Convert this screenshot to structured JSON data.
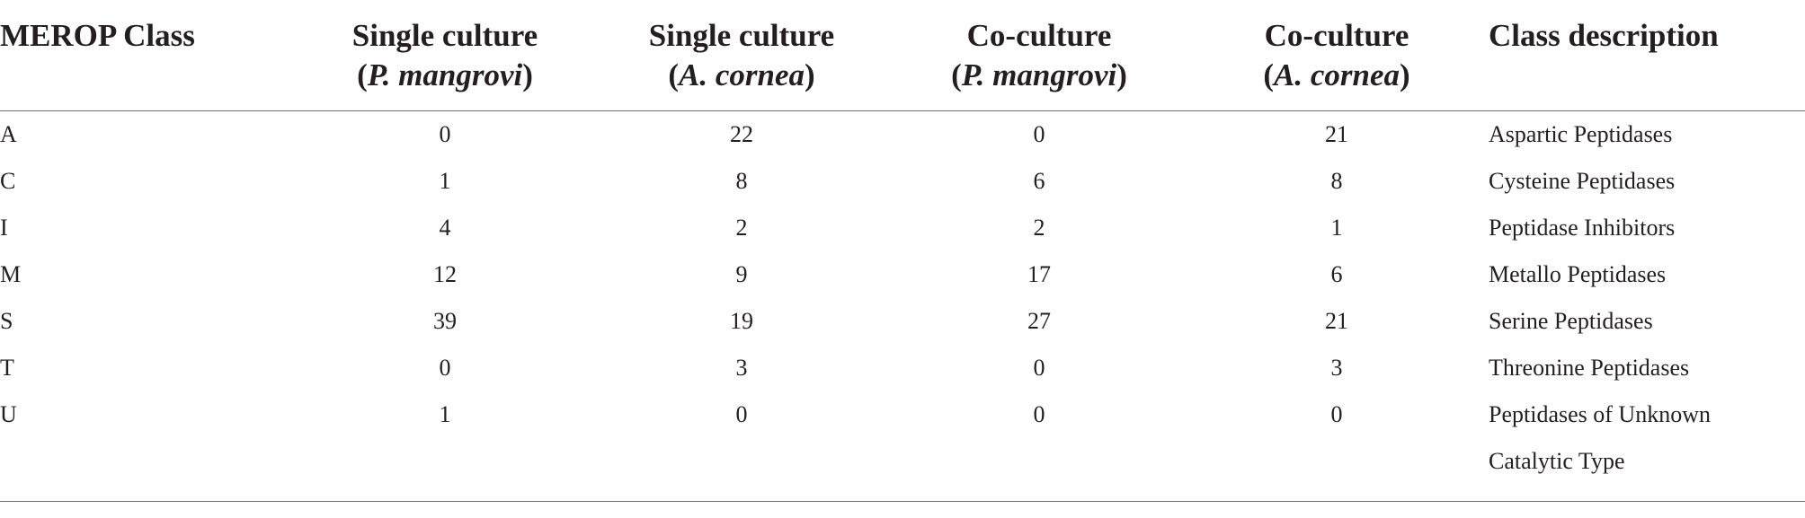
{
  "table": {
    "headers": [
      {
        "line1": "MEROP Class",
        "line2_open": "",
        "line2_italic": "",
        "line2_close": ""
      },
      {
        "line1": "Single culture",
        "line2_open": "(",
        "line2_italic": "P. mangrovi",
        "line2_close": ")"
      },
      {
        "line1": "Single culture",
        "line2_open": "(",
        "line2_italic": "A. cornea",
        "line2_close": ")"
      },
      {
        "line1": "Co-culture",
        "line2_open": "(",
        "line2_italic": "P. mangrovi",
        "line2_close": ")"
      },
      {
        "line1": "Co-culture",
        "line2_open": "(",
        "line2_italic": "A. cornea",
        "line2_close": ")"
      },
      {
        "line1": "Class description",
        "line2_open": "",
        "line2_italic": "",
        "line2_close": ""
      }
    ],
    "rows": [
      {
        "class": "A",
        "single_pm": "0",
        "single_ac": "22",
        "co_pm": "0",
        "co_ac": "21",
        "desc": "Aspartic Peptidases",
        "desc2": ""
      },
      {
        "class": "C",
        "single_pm": "1",
        "single_ac": "8",
        "co_pm": "6",
        "co_ac": "8",
        "desc": "Cysteine Peptidases",
        "desc2": ""
      },
      {
        "class": "I",
        "single_pm": "4",
        "single_ac": "2",
        "co_pm": "2",
        "co_ac": "1",
        "desc": "Peptidase Inhibitors",
        "desc2": ""
      },
      {
        "class": "M",
        "single_pm": "12",
        "single_ac": "9",
        "co_pm": "17",
        "co_ac": "6",
        "desc": "Metallo Peptidases",
        "desc2": ""
      },
      {
        "class": "S",
        "single_pm": "39",
        "single_ac": "19",
        "co_pm": "27",
        "co_ac": "21",
        "desc": "Serine Peptidases",
        "desc2": ""
      },
      {
        "class": "T",
        "single_pm": "0",
        "single_ac": "3",
        "co_pm": "0",
        "co_ac": "3",
        "desc": "Threonine Peptidases",
        "desc2": ""
      },
      {
        "class": "U",
        "single_pm": "1",
        "single_ac": "0",
        "co_pm": "0",
        "co_ac": "0",
        "desc": "Peptidases of Unknown",
        "desc2": "Catalytic Type"
      }
    ]
  }
}
